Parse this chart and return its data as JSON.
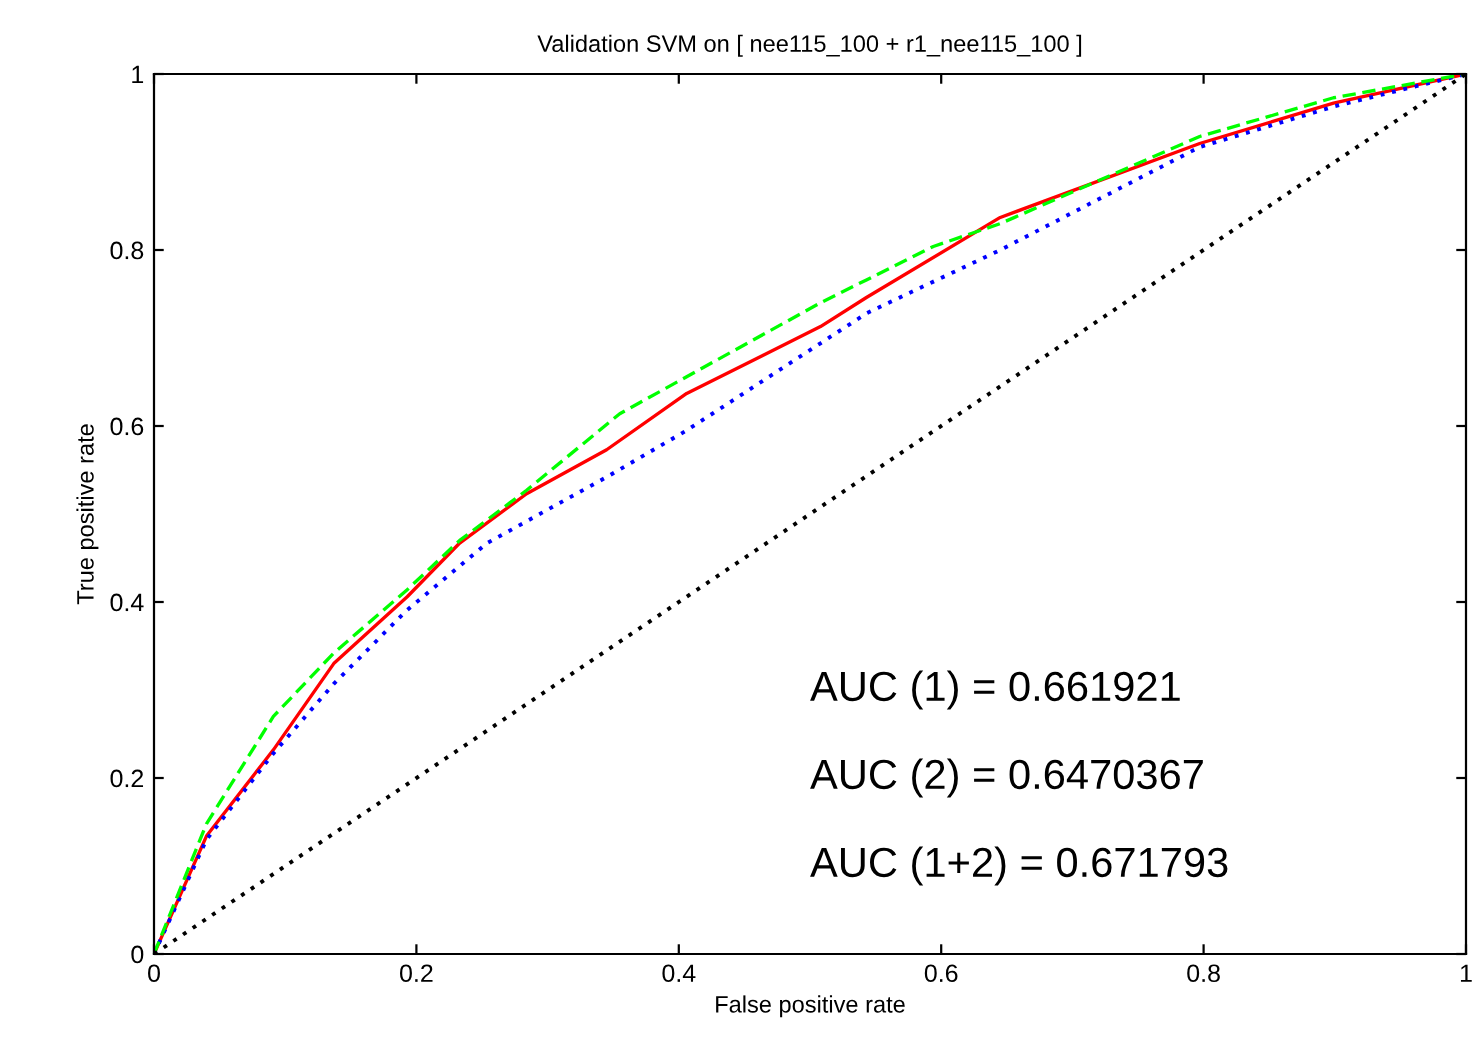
{
  "chart_data": {
    "type": "line",
    "title": "Validation SVM on [ nee115_100 + r1_nee115_100 ]",
    "xlabel": "False positive rate",
    "ylabel": "True positive rate",
    "xlim": [
      0,
      1
    ],
    "ylim": [
      0,
      1
    ],
    "xticks": [
      0,
      0.2,
      0.4,
      0.6,
      0.8,
      1
    ],
    "yticks": [
      0,
      0.2,
      0.4,
      0.6,
      0.8,
      1
    ],
    "grid": false,
    "legend": false,
    "marker": "none",
    "series": [
      {
        "color": "#ff0000",
        "line_style": "solid",
        "x": [
          0,
          0.04,
          0.091,
          0.137,
          0.193,
          0.233,
          0.284,
          0.345,
          0.406,
          0.508,
          0.543,
          0.645,
          0.797,
          0.899,
          1
        ],
        "values": [
          0,
          0.134,
          0.232,
          0.33,
          0.406,
          0.467,
          0.523,
          0.573,
          0.637,
          0.713,
          0.746,
          0.837,
          0.921,
          0.967,
          1
        ]
      },
      {
        "color": "#0000ff",
        "line_style": "dotted",
        "x": [
          0,
          0.04,
          0.091,
          0.137,
          0.193,
          0.254,
          0.345,
          0.406,
          0.508,
          0.543,
          0.645,
          0.797,
          0.899,
          1
        ],
        "values": [
          0,
          0.13,
          0.228,
          0.307,
          0.391,
          0.467,
          0.542,
          0.595,
          0.694,
          0.728,
          0.8,
          0.917,
          0.963,
          1
        ]
      },
      {
        "color": "#00ff00",
        "line_style": "dashed",
        "x": [
          0,
          0.04,
          0.091,
          0.137,
          0.193,
          0.233,
          0.284,
          0.355,
          0.406,
          0.508,
          0.543,
          0.594,
          0.645,
          0.797,
          0.899,
          1
        ],
        "values": [
          0,
          0.148,
          0.27,
          0.342,
          0.414,
          0.47,
          0.527,
          0.614,
          0.656,
          0.74,
          0.766,
          0.804,
          0.83,
          0.929,
          0.973,
          1
        ]
      },
      {
        "color": "#000000",
        "line_style": "dotted",
        "x": [
          0,
          1
        ],
        "values": [
          0,
          1
        ]
      }
    ],
    "annotations": [
      "AUC (1) = 0.661921",
      "AUC (2) = 0.6470367",
      "AUC (1+2) = 0.671793"
    ]
  }
}
